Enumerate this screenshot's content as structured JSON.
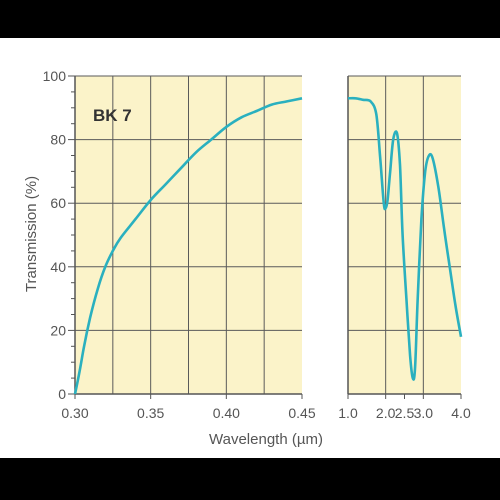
{
  "colors": {
    "plot_bg": "#fbf3c9",
    "grid": "#5a5a5a",
    "axis": "#555555",
    "curve": "#2ab0bf",
    "text": "#555555",
    "border_black": "#000000",
    "page_bg": "#ffffff"
  },
  "chart_data": {
    "type": "line",
    "ylabel": "Transmission (%)",
    "xlabel": "Wavelength (µm)",
    "ylim": [
      0,
      100
    ],
    "yticks": [
      "0",
      "20",
      "40",
      "60",
      "80",
      "100"
    ],
    "grid": true,
    "panels": [
      {
        "annotation": "BK 7",
        "xlim": [
          0.3,
          0.45
        ],
        "xticks": [
          "0.30",
          "0.35",
          "0.40",
          "0.45"
        ],
        "series": [
          {
            "x": [
              0.3,
              0.303,
              0.306,
              0.31,
              0.315,
              0.32,
              0.325,
              0.33,
              0.34,
              0.35,
              0.36,
              0.37,
              0.38,
              0.39,
              0.4,
              0.41,
              0.42,
              0.43,
              0.44,
              0.45
            ],
            "y": [
              0,
              7,
              15,
              24,
              33,
              40,
              45,
              49,
              55,
              61,
              66,
              71,
              76,
              80,
              84,
              87,
              89,
              91,
              92,
              93
            ]
          }
        ]
      },
      {
        "xlim": [
          1.0,
          4.0
        ],
        "xticks": [
          "1.0",
          "2.0",
          "2.5",
          "3.0",
          "4.0"
        ],
        "xtick_values": [
          1.0,
          2.0,
          2.5,
          3.0,
          4.0
        ],
        "series": [
          {
            "x": [
              1.0,
              1.2,
              1.4,
              1.6,
              1.75,
              1.85,
              1.95,
              2.0,
              2.05,
              2.12,
              2.2,
              2.3,
              2.38,
              2.45,
              2.55,
              2.65,
              2.72,
              2.78,
              2.85,
              2.95,
              3.05,
              3.15,
              3.25,
              3.4,
              3.55,
              3.7,
              3.85,
              4.0
            ],
            "y": [
              93,
              93,
              92.5,
              92,
              88,
              75,
              60,
              58.5,
              61,
              70,
              80,
              82,
              72,
              50,
              30,
              12,
              5,
              8,
              30,
              55,
              70,
              75,
              74,
              65,
              52,
              40,
              28,
              18
            ]
          }
        ]
      }
    ]
  }
}
